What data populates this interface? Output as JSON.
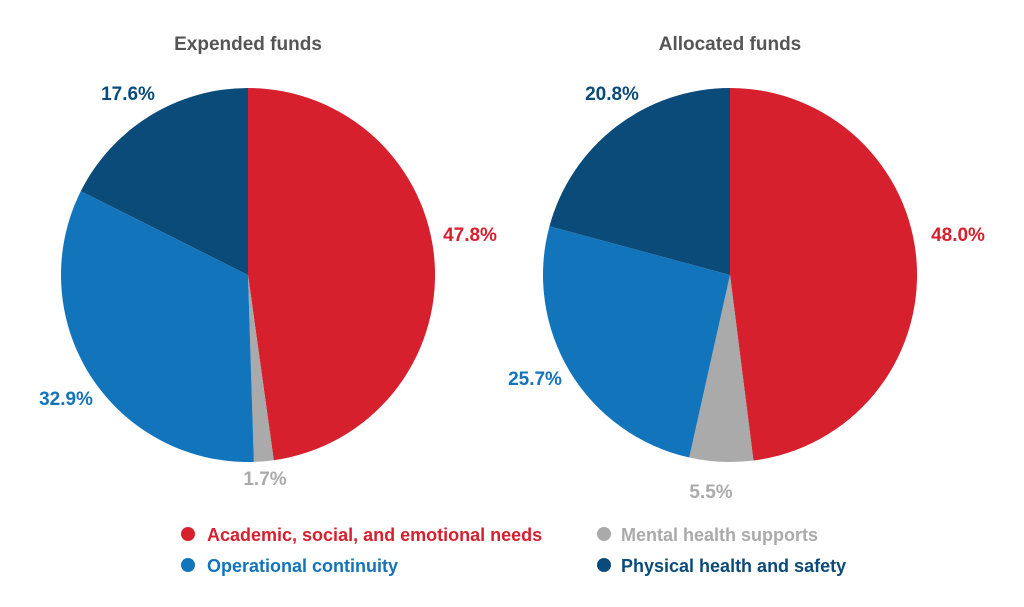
{
  "chart_data": [
    {
      "type": "pie",
      "title": "Expended funds",
      "slices": [
        {
          "key": "academic",
          "label": "Academic, social, and emotional needs",
          "value": 47.8,
          "display": "47.8%"
        },
        {
          "key": "mental",
          "label": "Mental health supports",
          "value": 1.7,
          "display": "1.7%"
        },
        {
          "key": "operational",
          "label": "Operational continuity",
          "value": 32.9,
          "display": "32.9%"
        },
        {
          "key": "physical",
          "label": "Physical health and safety",
          "value": 17.6,
          "display": "17.6%"
        }
      ]
    },
    {
      "type": "pie",
      "title": "Allocated funds",
      "slices": [
        {
          "key": "academic",
          "label": "Academic, social, and emotional needs",
          "value": 48.0,
          "display": "48.0%"
        },
        {
          "key": "mental",
          "label": "Mental health supports",
          "value": 5.5,
          "display": "5.5%"
        },
        {
          "key": "operational",
          "label": "Operational continuity",
          "value": 25.7,
          "display": "25.7%"
        },
        {
          "key": "physical",
          "label": "Physical health and safety",
          "value": 20.8,
          "display": "20.8%"
        }
      ]
    }
  ],
  "legend": [
    {
      "key": "academic",
      "label": "Academic, social, and emotional needs",
      "color": "#d7202e"
    },
    {
      "key": "mental",
      "label": "Mental health supports",
      "color": "#aaaaaa"
    },
    {
      "key": "operational",
      "label": "Operational continuity",
      "color": "#1274bb"
    },
    {
      "key": "physical",
      "label": "Physical health and safety",
      "color": "#0b4b79"
    }
  ],
  "colors": {
    "academic": "#d7202e",
    "mental": "#aaaaaa",
    "operational": "#1274bb",
    "physical": "#0b4b79",
    "title": "#555555"
  }
}
